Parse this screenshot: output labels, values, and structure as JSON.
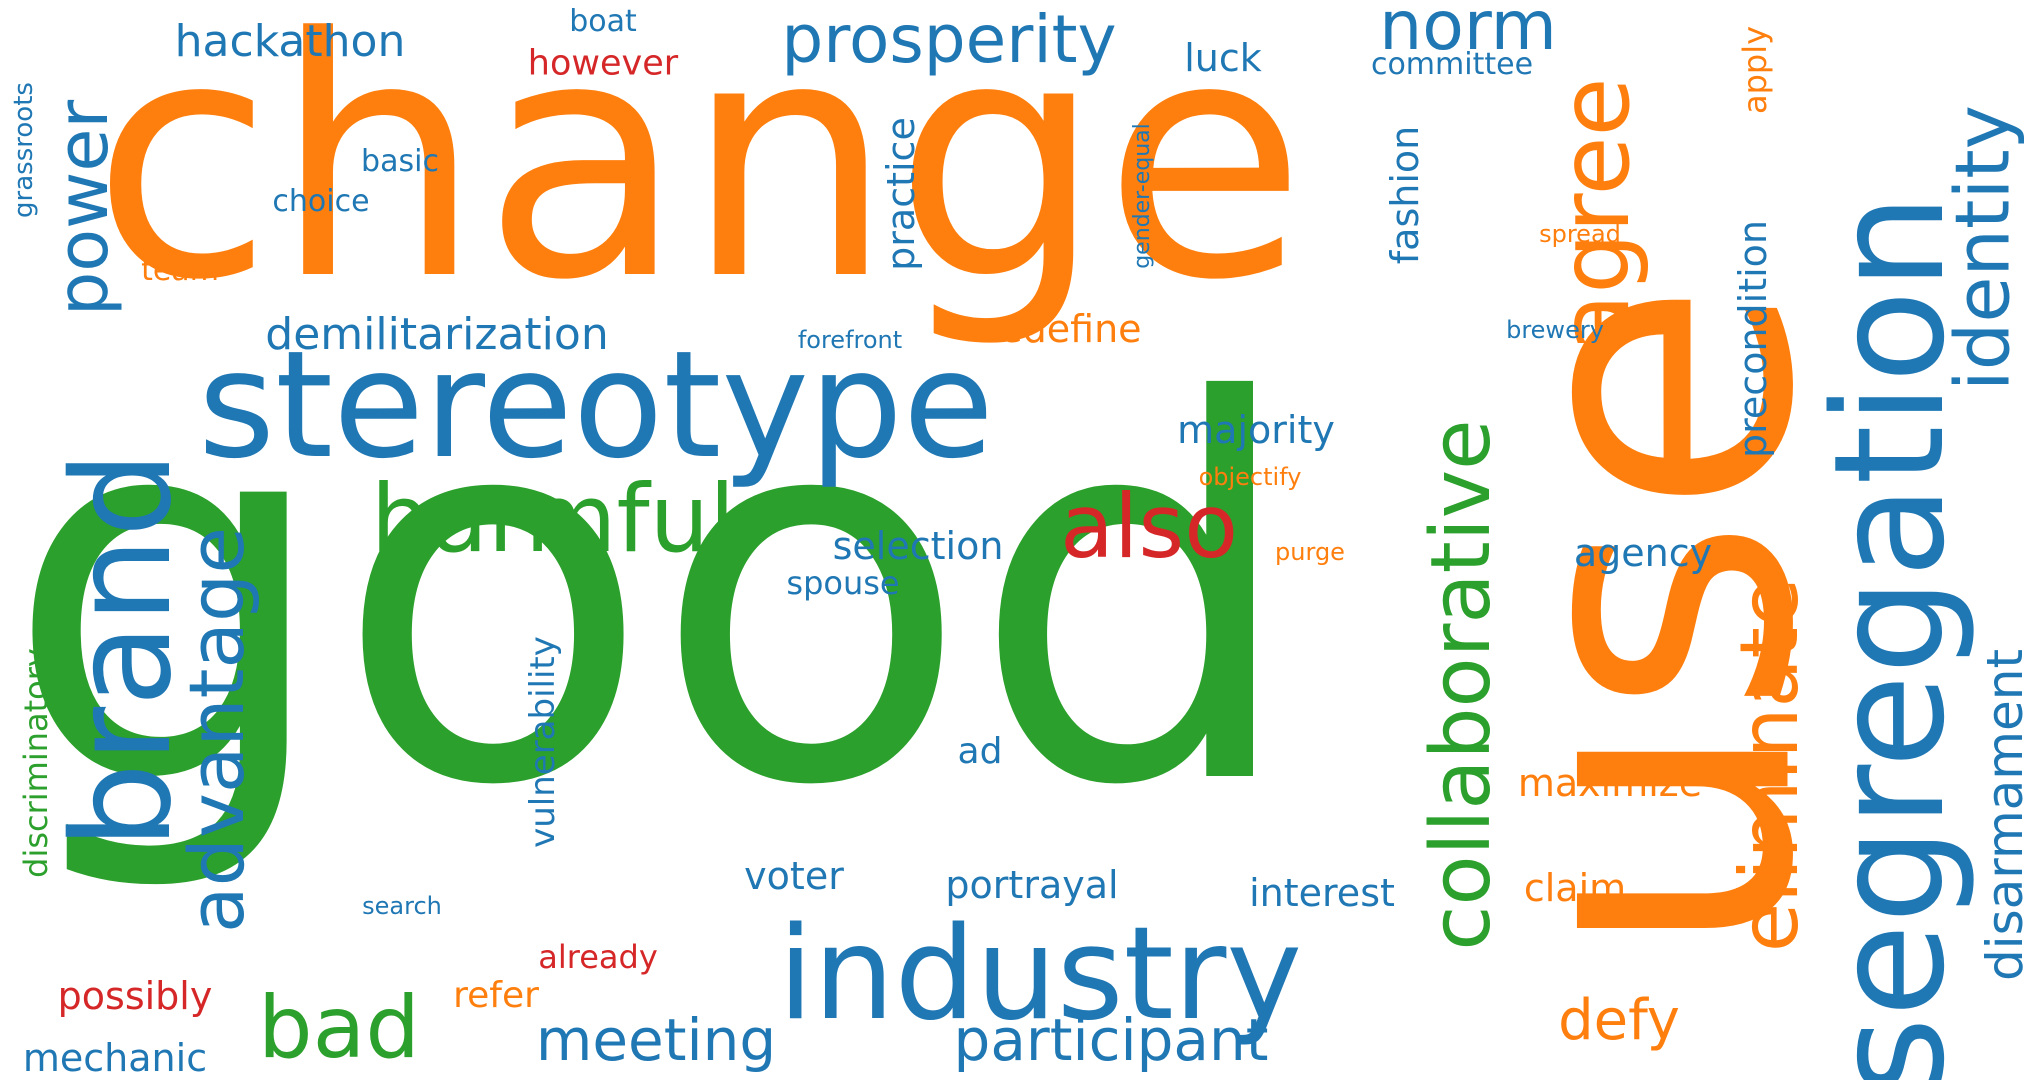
{
  "palette": {
    "blue": "#1f77b4",
    "orange": "#ff7f0e",
    "green": "#2ca02c",
    "red": "#d62728"
  },
  "words": [
    {
      "text": "change",
      "color": "orange"
    },
    {
      "text": "good",
      "color": "green"
    },
    {
      "text": "use",
      "color": "orange"
    },
    {
      "text": "stereotype",
      "color": "blue"
    },
    {
      "text": "industry",
      "color": "blue"
    },
    {
      "text": "segregation",
      "color": "blue"
    },
    {
      "text": "brand",
      "color": "blue"
    },
    {
      "text": "agree",
      "color": "orange"
    },
    {
      "text": "harmful",
      "color": "green"
    },
    {
      "text": "collaborative",
      "color": "green"
    },
    {
      "text": "eliminate",
      "color": "orange"
    },
    {
      "text": "advantage",
      "color": "blue"
    },
    {
      "text": "identity",
      "color": "blue"
    },
    {
      "text": "prosperity",
      "color": "blue"
    },
    {
      "text": "norm",
      "color": "blue"
    },
    {
      "text": "power",
      "color": "blue"
    },
    {
      "text": "also",
      "color": "red"
    },
    {
      "text": "bad",
      "color": "green"
    },
    {
      "text": "participant",
      "color": "blue"
    },
    {
      "text": "meeting",
      "color": "blue"
    },
    {
      "text": "defy",
      "color": "orange"
    },
    {
      "text": "disarmament",
      "color": "blue"
    },
    {
      "text": "demilitarization",
      "color": "blue"
    },
    {
      "text": "hackathon",
      "color": "blue"
    },
    {
      "text": "precondition",
      "color": "blue"
    },
    {
      "text": "practice",
      "color": "blue"
    },
    {
      "text": "vulnerability",
      "color": "blue"
    },
    {
      "text": "discriminatory",
      "color": "green"
    },
    {
      "text": "fashion",
      "color": "blue"
    },
    {
      "text": "majority",
      "color": "blue"
    },
    {
      "text": "selection",
      "color": "blue"
    },
    {
      "text": "redefine",
      "color": "orange"
    },
    {
      "text": "portrayal",
      "color": "blue"
    },
    {
      "text": "interest",
      "color": "blue"
    },
    {
      "text": "agency",
      "color": "blue"
    },
    {
      "text": "voter",
      "color": "blue"
    },
    {
      "text": "maximize",
      "color": "orange"
    },
    {
      "text": "claim",
      "color": "orange"
    },
    {
      "text": "mechanic",
      "color": "blue"
    },
    {
      "text": "possibly",
      "color": "red"
    },
    {
      "text": "however",
      "color": "red"
    },
    {
      "text": "luck",
      "color": "blue"
    },
    {
      "text": "committee",
      "color": "blue"
    },
    {
      "text": "apply",
      "color": "orange"
    },
    {
      "text": "refer",
      "color": "orange"
    },
    {
      "text": "already",
      "color": "red"
    },
    {
      "text": "spouse",
      "color": "blue"
    },
    {
      "text": "ad",
      "color": "blue"
    },
    {
      "text": "choice",
      "color": "blue"
    },
    {
      "text": "basic",
      "color": "blue"
    },
    {
      "text": "boat",
      "color": "blue"
    },
    {
      "text": "team",
      "color": "orange"
    },
    {
      "text": "grassroots",
      "color": "blue"
    },
    {
      "text": "forefront",
      "color": "blue"
    },
    {
      "text": "brewery",
      "color": "blue"
    },
    {
      "text": "spread",
      "color": "orange"
    },
    {
      "text": "objectify",
      "color": "orange"
    },
    {
      "text": "purge",
      "color": "orange"
    },
    {
      "text": "gender-equal",
      "color": "blue"
    },
    {
      "text": "search",
      "color": "blue"
    }
  ]
}
